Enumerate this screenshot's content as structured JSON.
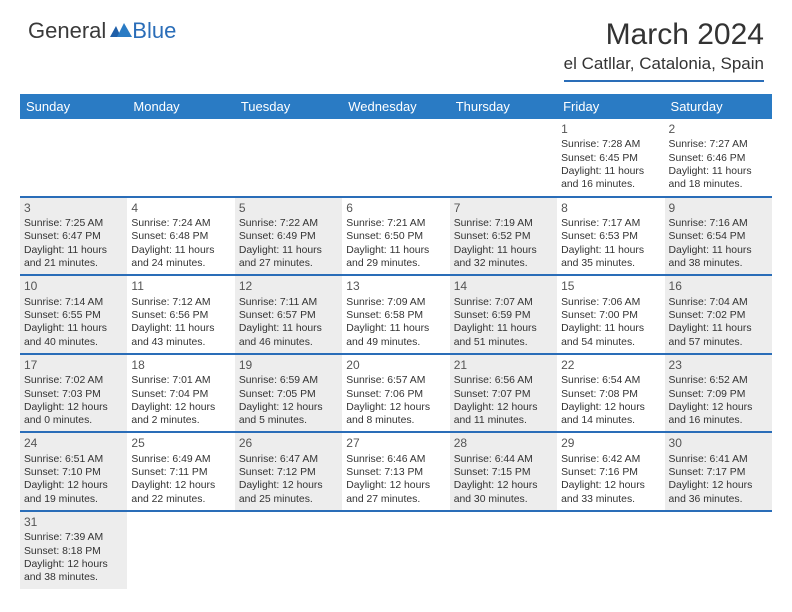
{
  "logo": {
    "general": "General",
    "blue": "Blue"
  },
  "title": "March 2024",
  "location": "el Catllar, Catalonia, Spain",
  "colors": {
    "header_bg": "#2a7bc4",
    "accent_line": "#2a6db8",
    "shaded_bg": "#ededed",
    "text": "#333333"
  },
  "weekdays": [
    "Sunday",
    "Monday",
    "Tuesday",
    "Wednesday",
    "Thursday",
    "Friday",
    "Saturday"
  ],
  "weeks": [
    [
      {
        "empty": true
      },
      {
        "empty": true
      },
      {
        "empty": true
      },
      {
        "empty": true
      },
      {
        "empty": true
      },
      {
        "day": "1",
        "sunrise": "Sunrise: 7:28 AM",
        "sunset": "Sunset: 6:45 PM",
        "day1": "Daylight: 11 hours",
        "day2": "and 16 minutes."
      },
      {
        "day": "2",
        "sunrise": "Sunrise: 7:27 AM",
        "sunset": "Sunset: 6:46 PM",
        "day1": "Daylight: 11 hours",
        "day2": "and 18 minutes."
      }
    ],
    [
      {
        "day": "3",
        "shaded": true,
        "sunrise": "Sunrise: 7:25 AM",
        "sunset": "Sunset: 6:47 PM",
        "day1": "Daylight: 11 hours",
        "day2": "and 21 minutes."
      },
      {
        "day": "4",
        "sunrise": "Sunrise: 7:24 AM",
        "sunset": "Sunset: 6:48 PM",
        "day1": "Daylight: 11 hours",
        "day2": "and 24 minutes."
      },
      {
        "day": "5",
        "shaded": true,
        "sunrise": "Sunrise: 7:22 AM",
        "sunset": "Sunset: 6:49 PM",
        "day1": "Daylight: 11 hours",
        "day2": "and 27 minutes."
      },
      {
        "day": "6",
        "sunrise": "Sunrise: 7:21 AM",
        "sunset": "Sunset: 6:50 PM",
        "day1": "Daylight: 11 hours",
        "day2": "and 29 minutes."
      },
      {
        "day": "7",
        "shaded": true,
        "sunrise": "Sunrise: 7:19 AM",
        "sunset": "Sunset: 6:52 PM",
        "day1": "Daylight: 11 hours",
        "day2": "and 32 minutes."
      },
      {
        "day": "8",
        "sunrise": "Sunrise: 7:17 AM",
        "sunset": "Sunset: 6:53 PM",
        "day1": "Daylight: 11 hours",
        "day2": "and 35 minutes."
      },
      {
        "day": "9",
        "shaded": true,
        "sunrise": "Sunrise: 7:16 AM",
        "sunset": "Sunset: 6:54 PM",
        "day1": "Daylight: 11 hours",
        "day2": "and 38 minutes."
      }
    ],
    [
      {
        "day": "10",
        "shaded": true,
        "sunrise": "Sunrise: 7:14 AM",
        "sunset": "Sunset: 6:55 PM",
        "day1": "Daylight: 11 hours",
        "day2": "and 40 minutes."
      },
      {
        "day": "11",
        "sunrise": "Sunrise: 7:12 AM",
        "sunset": "Sunset: 6:56 PM",
        "day1": "Daylight: 11 hours",
        "day2": "and 43 minutes."
      },
      {
        "day": "12",
        "shaded": true,
        "sunrise": "Sunrise: 7:11 AM",
        "sunset": "Sunset: 6:57 PM",
        "day1": "Daylight: 11 hours",
        "day2": "and 46 minutes."
      },
      {
        "day": "13",
        "sunrise": "Sunrise: 7:09 AM",
        "sunset": "Sunset: 6:58 PM",
        "day1": "Daylight: 11 hours",
        "day2": "and 49 minutes."
      },
      {
        "day": "14",
        "shaded": true,
        "sunrise": "Sunrise: 7:07 AM",
        "sunset": "Sunset: 6:59 PM",
        "day1": "Daylight: 11 hours",
        "day2": "and 51 minutes."
      },
      {
        "day": "15",
        "sunrise": "Sunrise: 7:06 AM",
        "sunset": "Sunset: 7:00 PM",
        "day1": "Daylight: 11 hours",
        "day2": "and 54 minutes."
      },
      {
        "day": "16",
        "shaded": true,
        "sunrise": "Sunrise: 7:04 AM",
        "sunset": "Sunset: 7:02 PM",
        "day1": "Daylight: 11 hours",
        "day2": "and 57 minutes."
      }
    ],
    [
      {
        "day": "17",
        "shaded": true,
        "sunrise": "Sunrise: 7:02 AM",
        "sunset": "Sunset: 7:03 PM",
        "day1": "Daylight: 12 hours",
        "day2": "and 0 minutes."
      },
      {
        "day": "18",
        "sunrise": "Sunrise: 7:01 AM",
        "sunset": "Sunset: 7:04 PM",
        "day1": "Daylight: 12 hours",
        "day2": "and 2 minutes."
      },
      {
        "day": "19",
        "shaded": true,
        "sunrise": "Sunrise: 6:59 AM",
        "sunset": "Sunset: 7:05 PM",
        "day1": "Daylight: 12 hours",
        "day2": "and 5 minutes."
      },
      {
        "day": "20",
        "sunrise": "Sunrise: 6:57 AM",
        "sunset": "Sunset: 7:06 PM",
        "day1": "Daylight: 12 hours",
        "day2": "and 8 minutes."
      },
      {
        "day": "21",
        "shaded": true,
        "sunrise": "Sunrise: 6:56 AM",
        "sunset": "Sunset: 7:07 PM",
        "day1": "Daylight: 12 hours",
        "day2": "and 11 minutes."
      },
      {
        "day": "22",
        "sunrise": "Sunrise: 6:54 AM",
        "sunset": "Sunset: 7:08 PM",
        "day1": "Daylight: 12 hours",
        "day2": "and 14 minutes."
      },
      {
        "day": "23",
        "shaded": true,
        "sunrise": "Sunrise: 6:52 AM",
        "sunset": "Sunset: 7:09 PM",
        "day1": "Daylight: 12 hours",
        "day2": "and 16 minutes."
      }
    ],
    [
      {
        "day": "24",
        "shaded": true,
        "sunrise": "Sunrise: 6:51 AM",
        "sunset": "Sunset: 7:10 PM",
        "day1": "Daylight: 12 hours",
        "day2": "and 19 minutes."
      },
      {
        "day": "25",
        "sunrise": "Sunrise: 6:49 AM",
        "sunset": "Sunset: 7:11 PM",
        "day1": "Daylight: 12 hours",
        "day2": "and 22 minutes."
      },
      {
        "day": "26",
        "shaded": true,
        "sunrise": "Sunrise: 6:47 AM",
        "sunset": "Sunset: 7:12 PM",
        "day1": "Daylight: 12 hours",
        "day2": "and 25 minutes."
      },
      {
        "day": "27",
        "sunrise": "Sunrise: 6:46 AM",
        "sunset": "Sunset: 7:13 PM",
        "day1": "Daylight: 12 hours",
        "day2": "and 27 minutes."
      },
      {
        "day": "28",
        "shaded": true,
        "sunrise": "Sunrise: 6:44 AM",
        "sunset": "Sunset: 7:15 PM",
        "day1": "Daylight: 12 hours",
        "day2": "and 30 minutes."
      },
      {
        "day": "29",
        "sunrise": "Sunrise: 6:42 AM",
        "sunset": "Sunset: 7:16 PM",
        "day1": "Daylight: 12 hours",
        "day2": "and 33 minutes."
      },
      {
        "day": "30",
        "shaded": true,
        "sunrise": "Sunrise: 6:41 AM",
        "sunset": "Sunset: 7:17 PM",
        "day1": "Daylight: 12 hours",
        "day2": "and 36 minutes."
      }
    ],
    [
      {
        "day": "31",
        "shaded": true,
        "sunrise": "Sunrise: 7:39 AM",
        "sunset": "Sunset: 8:18 PM",
        "day1": "Daylight: 12 hours",
        "day2": "and 38 minutes."
      },
      {
        "empty": true
      },
      {
        "empty": true
      },
      {
        "empty": true
      },
      {
        "empty": true
      },
      {
        "empty": true
      },
      {
        "empty": true
      }
    ]
  ]
}
